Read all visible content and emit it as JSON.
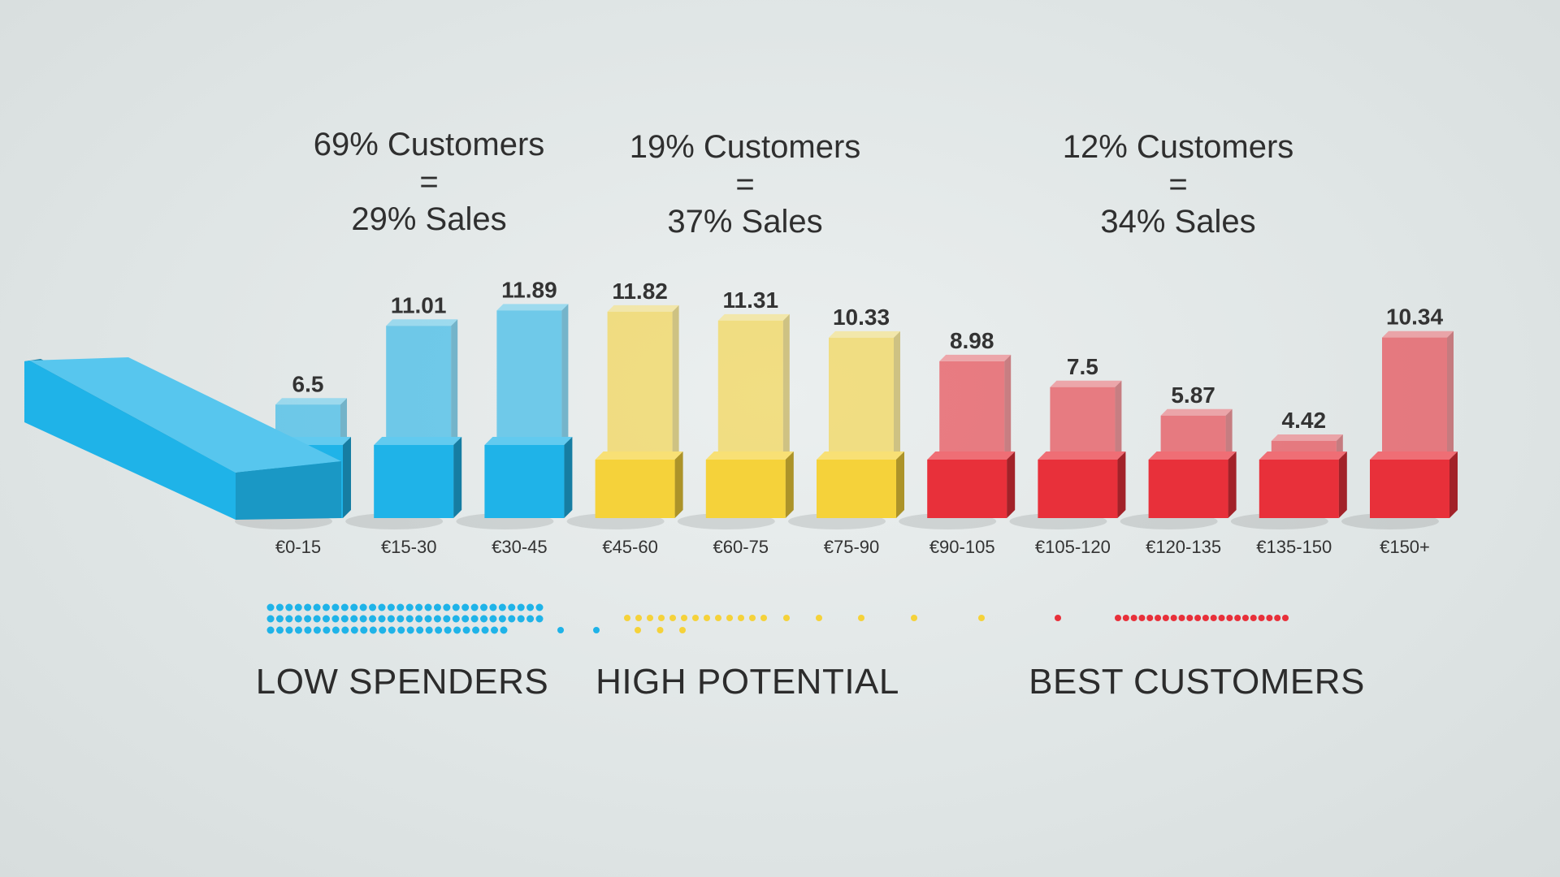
{
  "segments": [
    {
      "customers": "69% Customers",
      "equals": "=",
      "sales": "29% Sales",
      "group_label": "LOW SPENDERS",
      "color": "#1fb3e8"
    },
    {
      "customers": "19% Customers",
      "equals": "=",
      "sales": "37% Sales",
      "group_label": "HIGH POTENTIAL",
      "color": "#f5d23a"
    },
    {
      "customers": "12% Customers",
      "equals": "=",
      "sales": "34% Sales",
      "group_label": "BEST CUSTOMERS",
      "color": "#e8303a"
    }
  ],
  "chart_data": {
    "type": "bar",
    "categories": [
      "€0-15",
      "€15-30",
      "€30-45",
      "€45-60",
      "€60-75",
      "€75-90",
      "€90-105",
      "€105-120",
      "€120-135",
      "€135-150",
      "€150+"
    ],
    "values": [
      6.5,
      11.01,
      11.89,
      11.82,
      11.31,
      10.33,
      8.98,
      7.5,
      5.87,
      4.42,
      10.34
    ],
    "value_labels": [
      "6.5",
      "11.01",
      "11.89",
      "11.82",
      "11.31",
      "10.33",
      "8.98",
      "7.5",
      "5.87",
      "4.42",
      "10.34"
    ],
    "segment_of_category": [
      0,
      0,
      0,
      1,
      1,
      1,
      2,
      2,
      2,
      2,
      2
    ],
    "colors": {
      "low_spenders": "#1fb3e8",
      "high_potential": "#f5d23a",
      "best_customers": "#e8303a"
    }
  }
}
